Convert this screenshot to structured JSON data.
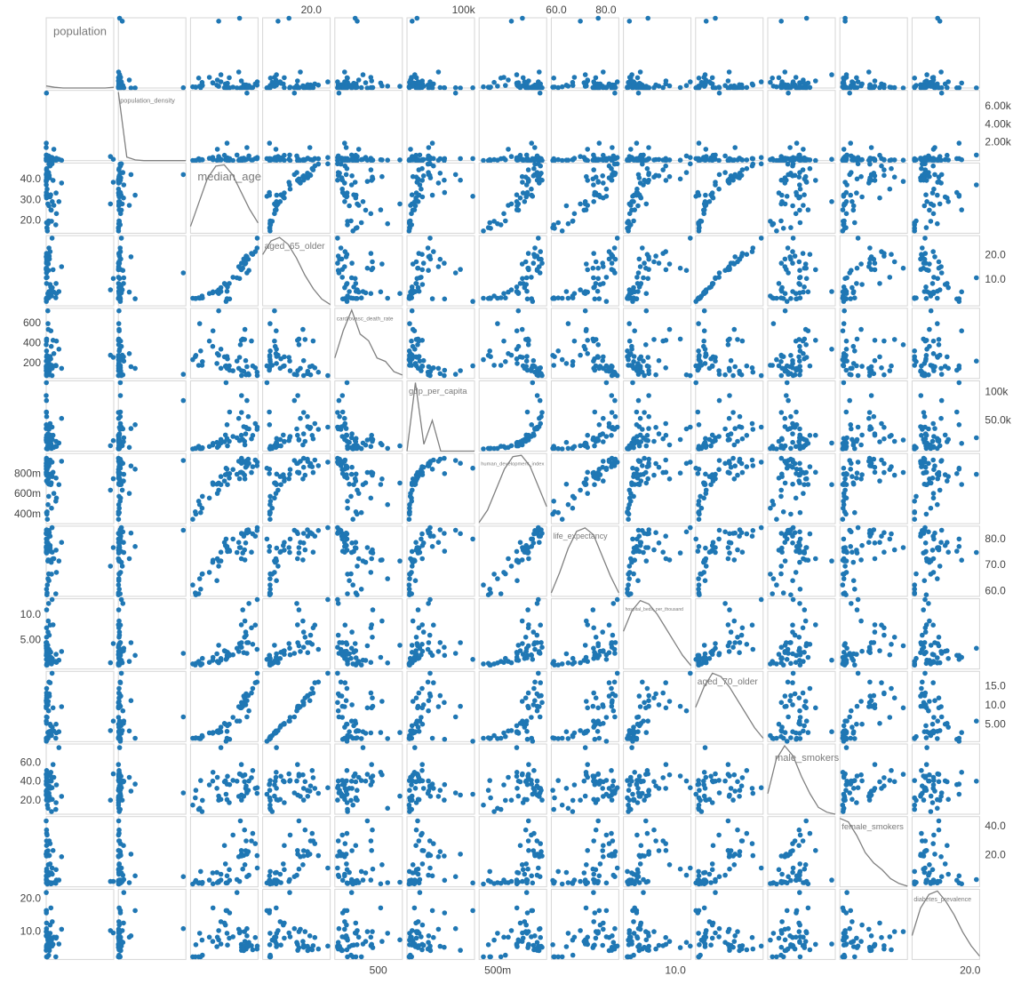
{
  "chart_data": {
    "type": "splom",
    "color": "#1f77b4",
    "line_color": "#808080",
    "dimensions": [
      {
        "name": "population",
        "lim": [
          0,
          1450000000
        ],
        "values": [
          1440000000,
          1380000000,
          331000000,
          273000000,
          220000000,
          212000000,
          206000000,
          126000000,
          84000000,
          5850000,
          630000,
          2900000,
          146000000,
          44000000,
          165000000,
          102000000,
          129000000,
          115000000,
          109000000,
          97000000,
          84300000,
          84000000,
          60000000,
          65000000,
          68000000,
          59000000,
          54000000,
          6800000,
          6900000,
          10400000,
          1270000,
          19000000,
          16000000,
          24000000,
          20000000,
          1700000,
          4300000,
          5400000,
          38000000,
          440000,
          6800000,
          9400000,
          630000,
          39000000,
          34000000,
          51000000,
          8700000,
          8000000
        ],
        "density": [
          0.03,
          0.01,
          0,
          0,
          0,
          0,
          0,
          0,
          0.01
        ]
      },
      {
        "name": "population_density",
        "lim": [
          0,
          7800
        ],
        "yaxis": "right",
        "yticks": [
          {
            "value": 6000,
            "label": "6.00k"
          },
          {
            "value": 4000,
            "label": "4.00k"
          },
          {
            "value": 2000,
            "label": "2.00k"
          }
        ],
        "values": [
          148,
          450,
          35.6,
          145,
          255,
          25,
          209,
          347,
          237,
          7500,
          231,
          227,
          9,
          77,
          1265,
          97,
          66,
          104,
          352,
          308,
          104,
          49,
          206,
          123,
          273,
          47,
          87,
          80,
          65,
          83,
          623,
          24,
          12,
          16,
          15,
          1935,
          232,
          14,
          124,
          1454,
          595,
          46,
          46,
          54,
          76,
          527,
          214,
          105
        ],
        "density": [
          1,
          0.05,
          0.01,
          0,
          0,
          0,
          0,
          0,
          0
        ]
      },
      {
        "name": "median_age",
        "lim": [
          14,
          48
        ],
        "yaxis": "left",
        "yticks": [
          {
            "value": 40,
            "label": "40.0"
          },
          {
            "value": 30,
            "label": "30.0"
          },
          {
            "value": 20,
            "label": "20.0"
          }
        ],
        "values": [
          38.7,
          28.2,
          38.3,
          29.3,
          23.5,
          33.5,
          18.1,
          47.6,
          46.6,
          42.4,
          39.7,
          31.9,
          39.6,
          41.4,
          27.5,
          25.3,
          29.3,
          19.8,
          25.2,
          32.6,
          31.6,
          32.4,
          47.5,
          42,
          40.8,
          27.3,
          20,
          41.2,
          44.7,
          45.3,
          37.4,
          35.4,
          16.7,
          15.1,
          16.4,
          32.4,
          33.7,
          39.7,
          41.8,
          42.4,
          31.1,
          40.3,
          39.1,
          18.6,
          28.2,
          43.4,
          43.1,
          19.1
        ],
        "density": [
          0.1,
          0.45,
          0.8,
          0.98,
          1,
          0.85,
          0.6,
          0.35,
          0.15
        ]
      },
      {
        "name": "aged_65_older",
        "lim": [
          -0.5,
          28
        ],
        "xaxis": "top",
        "yaxis": "right",
        "xticks": [
          {
            "value": 20,
            "label": "20.0"
          }
        ],
        "yticks": [
          {
            "value": 20,
            "label": "20.0"
          },
          {
            "value": 10,
            "label": "10.0"
          }
        ],
        "values": [
          10.6,
          6,
          15.4,
          5.3,
          4.5,
          8.6,
          2.8,
          27,
          21.5,
          12.9,
          14.3,
          1.3,
          14.2,
          16.5,
          5.1,
          5.2,
          6.9,
          3.5,
          4.8,
          7.2,
          8.2,
          5.4,
          23,
          19.7,
          18.5,
          5.3,
          2.7,
          17.4,
          20.8,
          20.4,
          10.9,
          11.1,
          2.5,
          2.6,
          2.5,
          2.4,
          2.3,
          16.8,
          16.8,
          19.4,
          8.6,
          14.8,
          14.8,
          2.6,
          4.5,
          13.9,
          18.4,
          2.7
        ],
        "density": [
          0.75,
          0.95,
          1,
          0.9,
          0.7,
          0.45,
          0.25,
          0.1,
          0.02
        ]
      },
      {
        "name": "cardiovasc_death_rate",
        "lim": [
          50,
          750
        ],
        "xaxis": "bottom",
        "yaxis": "left",
        "xticks": [
          500
        ],
        "yticks": [
          600,
          400,
          200
        ],
        "values": [
          261,
          282,
          151,
          342,
          423,
          177,
          181,
          79,
          156,
          92,
          128,
          176,
          431,
          539,
          298,
          525,
          152,
          182,
          370,
          246,
          171,
          270,
          113,
          86,
          122,
          200,
          218,
          439,
          424,
          175,
          224,
          127,
          280,
          238,
          268,
          151,
          132,
          79,
          228,
          168,
          266,
          443,
          387,
          597,
          724,
          86,
          99,
          325
        ],
        "density": [
          0.3,
          0.7,
          1,
          0.65,
          0.55,
          0.3,
          0.25,
          0.1,
          0.05
        ]
      },
      {
        "name": "gdp_per_capita",
        "lim": [
          -3000,
          120000
        ],
        "xaxis": "top",
        "yaxis": "right",
        "xticks": [
          {
            "value": 100000,
            "label": "100k"
          }
        ],
        "yticks": [
          {
            "value": 100000,
            "label": "100k"
          },
          {
            "value": 50000,
            "label": "50.0k"
          }
        ],
        "values": [
          15309,
          6427,
          54225,
          11189,
          5035,
          14103,
          5338,
          39002,
          45229,
          85535,
          94278,
          116936,
          24766,
          7894,
          3524,
          10550,
          17336,
          1730,
          7599,
          6171,
          25129,
          19083,
          35220,
          38606,
          39753,
          12295,
          2993,
          14049,
          18563,
          24574,
          20293,
          22767,
          1768,
          926,
          2014,
          43291,
          65531,
          64800,
          27216,
          36513,
          13368,
          17168,
          16409,
          1804,
          6253,
          35938,
          57410,
          1390
        ],
        "density": [
          0,
          1,
          0.1,
          0.45,
          0,
          0,
          0,
          0,
          0
        ]
      },
      {
        "name": "human_development_index",
        "lim": [
          0.31,
          1.0
        ],
        "xaxis": "bottom",
        "yaxis": "left",
        "xticks": [
          {
            "value": 0.5,
            "label": "500m"
          }
        ],
        "yticks": [
          {
            "value": 0.8,
            "label": "800m"
          },
          {
            "value": 0.6,
            "label": "600m"
          },
          {
            "value": 0.4,
            "label": "400m"
          }
        ],
        "values": [
          0.752,
          0.64,
          0.924,
          0.694,
          0.562,
          0.759,
          0.532,
          0.915,
          0.936,
          0.932,
          0.904,
          0.856,
          0.816,
          0.75,
          0.608,
          0.696,
          0.774,
          0.463,
          0.712,
          0.694,
          0.791,
          0.798,
          0.88,
          0.901,
          0.922,
          0.699,
          0.579,
          0.787,
          0.813,
          0.87,
          0.796,
          0.843,
          0.404,
          0.354,
          0.427,
          0.846,
          0.803,
          0.953,
          0.865,
          0.878,
          0.73,
          0.808,
          0.814,
          0.498,
          0.71,
          0.903,
          0.944,
          0.419
        ],
        "density": [
          0.02,
          0.2,
          0.5,
          0.8,
          0.98,
          1,
          0.85,
          0.55,
          0.25
        ]
      },
      {
        "name": "life_expectancy",
        "lim": [
          58,
          85.2
        ],
        "xaxis": "top",
        "yaxis": "right",
        "xticks": [
          {
            "value": 60,
            "label": "60.0"
          },
          {
            "value": 80,
            "label": "80.0"
          }
        ],
        "yticks": [
          {
            "value": 80,
            "label": "80.0"
          },
          {
            "value": 70,
            "label": "70.0"
          },
          {
            "value": 60,
            "label": "60.0"
          }
        ],
        "values": [
          76.9,
          69.7,
          78.9,
          71.7,
          67.3,
          75.9,
          59,
          84.6,
          81.3,
          83.6,
          82.3,
          80.2,
          72.6,
          72.1,
          72.6,
          72,
          75.1,
          66.6,
          71.2,
          75.4,
          77.7,
          76.7,
          83.5,
          82.7,
          81.3,
          64.1,
          66.7,
          76,
          75.1,
          82.2,
          75,
          80.2,
          58.6,
          62.4,
          59.3,
          77.3,
          75.5,
          82.4,
          78.7,
          82.5,
          78.9,
          74.8,
          76.9,
          64.8,
          71.7,
          83,
          83.8,
          60.8
        ],
        "density": [
          0.05,
          0.35,
          0.7,
          0.95,
          1,
          0.9,
          0.6,
          0.3,
          0.05
        ]
      },
      {
        "name": "hospital_beds_per_thousand",
        "lim": [
          -0.7,
          13.2
        ],
        "xaxis": "bottom",
        "yaxis": "left",
        "xticks": [
          {
            "value": 10,
            "label": "10.0"
          }
        ],
        "yticks": [
          {
            "value": 10,
            "label": "10.0"
          },
          {
            "value": 5,
            "label": "5.00"
          }
        ],
        "values": [
          4.34,
          0.53,
          2.77,
          1.04,
          0.6,
          2.2,
          0.8,
          13.05,
          8,
          2.4,
          4.51,
          1.2,
          8.05,
          8.8,
          0.8,
          1.6,
          1.38,
          0.3,
          1,
          2.6,
          2.8,
          1.5,
          3.18,
          5.98,
          2.54,
          2.3,
          1.4,
          5.6,
          7.45,
          4.2,
          3.4,
          2.1,
          0.4,
          0.3,
          0.1,
          2,
          2,
          3.6,
          6.6,
          4.5,
          2.9,
          11,
          3.9,
          0.5,
          4,
          12.27,
          4.53,
          0.1
        ],
        "density": [
          0.55,
          0.85,
          1,
          0.95,
          0.8,
          0.6,
          0.4,
          0.2,
          0.05
        ]
      },
      {
        "name": "aged_70_older",
        "lim": [
          0.5,
          19
        ],
        "yaxis": "right",
        "yticks": [
          {
            "value": 15,
            "label": "15.0"
          },
          {
            "value": 10,
            "label": "10.0"
          },
          {
            "value": 5,
            "label": "5.00"
          }
        ],
        "values": [
          5.9,
          3.4,
          9.7,
          3.1,
          2.8,
          5.1,
          1.4,
          18.5,
          16,
          7,
          9.8,
          0.6,
          9.4,
          11.1,
          3.3,
          2.9,
          4.3,
          2.1,
          2.7,
          4.7,
          5.1,
          3.2,
          16.2,
          13.1,
          12.5,
          3.1,
          1.8,
          12,
          13.3,
          14.5,
          5.9,
          6.9,
          1.5,
          1.4,
          1.4,
          1.4,
          1.1,
          10.8,
          10.2,
          11.3,
          5.3,
          9.8,
          9.4,
          1.3,
          2.9,
          8.6,
          12.6,
          1.3
        ],
        "density": [
          0.5,
          0.8,
          1,
          0.95,
          0.8,
          0.6,
          0.4,
          0.2,
          0.05
        ]
      },
      {
        "name": "male_smokers",
        "lim": [
          5.7,
          80
        ],
        "yaxis": "left",
        "yticks": [
          {
            "value": 60,
            "label": "60.0"
          },
          {
            "value": 40,
            "label": "40.0"
          },
          {
            "value": 20,
            "label": "20.0"
          }
        ],
        "values": [
          48.4,
          20.6,
          24.6,
          76.1,
          36.7,
          17.9,
          10.8,
          33.7,
          33.1,
          28.3,
          26,
          26.9,
          58.3,
          47.4,
          44.7,
          50.1,
          21.4,
          8.5,
          40.8,
          45.9,
          41.1,
          21.1,
          27.8,
          35.6,
          24.7,
          33.2,
          20.4,
          40.2,
          44.4,
          52,
          40.7,
          41.5,
          31,
          15.4,
          23,
          37.6,
          37,
          20.7,
          33.1,
          30.2,
          40,
          46.1,
          47.9,
          12,
          24.9,
          40.9,
          31,
          41.3
        ],
        "density": [
          0.3,
          0.8,
          1,
          0.85,
          0.55,
          0.3,
          0.1,
          0.03,
          0
        ]
      },
      {
        "name": "female_smokers",
        "lim": [
          -1.9,
          47
        ],
        "yaxis": "right",
        "yticks": [
          {
            "value": 40,
            "label": "40.0"
          },
          {
            "value": 20,
            "label": "20.0"
          }
        ],
        "values": [
          1.9,
          1.9,
          19.1,
          2.8,
          2.8,
          10.1,
          0.6,
          11.2,
          28.2,
          5.2,
          20.9,
          0.8,
          23.4,
          13.5,
          1,
          0.2,
          6.9,
          0.4,
          7.8,
          1,
          14.1,
          0.8,
          19.8,
          30.1,
          20,
          8.1,
          1.2,
          37.7,
          30.1,
          35.3,
          3.2,
          34.2,
          2.5,
          0.1,
          1.6,
          5.8,
          2.7,
          19.6,
          23.3,
          20.9,
          26.9,
          10.5,
          44,
          1,
          1.3,
          6.2,
          22.6,
          8.8
        ],
        "density": [
          1,
          0.95,
          0.75,
          0.5,
          0.35,
          0.25,
          0.12,
          0.05,
          0.01
        ]
      },
      {
        "name": "diabetes_prevalence",
        "lim": [
          1.6,
          23
        ],
        "xaxis": "bottom",
        "yaxis": "left",
        "xticks": [
          {
            "value": 20,
            "label": "20.0"
          }
        ],
        "yticks": [
          {
            "value": 20,
            "label": "20.0"
          },
          {
            "value": 10,
            "label": "10.0"
          }
        ],
        "values": [
          9.7,
          10.4,
          10.8,
          6.3,
          8.4,
          8.1,
          2.4,
          5.7,
          8.3,
          10.99,
          4.4,
          16.5,
          6.2,
          7.1,
          8.4,
          17.3,
          13.1,
          7.5,
          7.1,
          6,
          12.1,
          9.6,
          4.8,
          4.8,
          4.3,
          5.5,
          2.9,
          10.08,
          5.8,
          4.55,
          22,
          8.5,
          6.1,
          2.4,
          2.4,
          16.5,
          15.8,
          5.3,
          5.9,
          8.8,
          12.7,
          5.2,
          10.08,
          9.6,
          7.6,
          6.8,
          5.6,
          2.4
        ],
        "density": [
          0.35,
          0.75,
          0.95,
          1,
          0.85,
          0.65,
          0.4,
          0.2,
          0.05
        ]
      }
    ]
  }
}
